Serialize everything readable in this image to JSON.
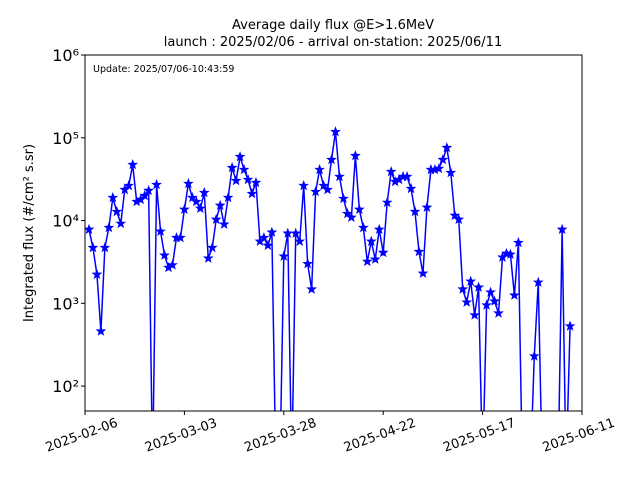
{
  "chart_data": {
    "type": "line",
    "title": "Average daily flux @E>1.6MeV",
    "subtitle": "launch : 2025/02/06 - arrival on-station: 2025/06/11",
    "annotation": "Update: 2025/07/06-10:43:59",
    "y_label": "Integrated flux (#/cm² s.sr)",
    "log_y": true,
    "xlim": [
      "2025-02-06",
      "2025-06-11"
    ],
    "xticks": [
      "2025-02-06",
      "2025-03-03",
      "2025-03-28",
      "2025-04-22",
      "2025-05-17",
      "2025-06-11"
    ],
    "ylim": [
      50,
      1000000
    ],
    "yticks": [
      {
        "value": 100,
        "label": "10²"
      },
      {
        "value": 1000,
        "label": "10³"
      },
      {
        "value": 10000,
        "label": "10⁴"
      },
      {
        "value": 100000,
        "label": "10⁵"
      },
      {
        "value": 1000000,
        "label": "10⁶"
      }
    ],
    "x": [
      "2025-02-07",
      "2025-02-08",
      "2025-02-09",
      "2025-02-10",
      "2025-02-11",
      "2025-02-12",
      "2025-02-13",
      "2025-02-14",
      "2025-02-15",
      "2025-02-16",
      "2025-02-17",
      "2025-02-18",
      "2025-02-19",
      "2025-02-20",
      "2025-02-21",
      "2025-02-22",
      "2025-02-23",
      "2025-02-24",
      "2025-02-25",
      "2025-02-26",
      "2025-02-27",
      "2025-02-28",
      "2025-03-01",
      "2025-03-02",
      "2025-03-03",
      "2025-03-04",
      "2025-03-05",
      "2025-03-06",
      "2025-03-07",
      "2025-03-08",
      "2025-03-09",
      "2025-03-10",
      "2025-03-11",
      "2025-03-12",
      "2025-03-13",
      "2025-03-14",
      "2025-03-15",
      "2025-03-16",
      "2025-03-17",
      "2025-03-18",
      "2025-03-19",
      "2025-03-20",
      "2025-03-21",
      "2025-03-22",
      "2025-03-23",
      "2025-03-24",
      "2025-03-25",
      "2025-03-26",
      "2025-03-27",
      "2025-03-28",
      "2025-03-29",
      "2025-03-30",
      "2025-03-31",
      "2025-04-01",
      "2025-04-02",
      "2025-04-03",
      "2025-04-04",
      "2025-04-05",
      "2025-04-06",
      "2025-04-07",
      "2025-04-08",
      "2025-04-09",
      "2025-04-10",
      "2025-04-11",
      "2025-04-12",
      "2025-04-13",
      "2025-04-14",
      "2025-04-15",
      "2025-04-16",
      "2025-04-17",
      "2025-04-18",
      "2025-04-19",
      "2025-04-20",
      "2025-04-21",
      "2025-04-22",
      "2025-04-23",
      "2025-04-24",
      "2025-04-25",
      "2025-04-26",
      "2025-04-27",
      "2025-04-28",
      "2025-04-29",
      "2025-04-30",
      "2025-05-01",
      "2025-05-02",
      "2025-05-03",
      "2025-05-04",
      "2025-05-05",
      "2025-05-06",
      "2025-05-07",
      "2025-05-08",
      "2025-05-09",
      "2025-05-10",
      "2025-05-11",
      "2025-05-12",
      "2025-05-13",
      "2025-05-14",
      "2025-05-15",
      "2025-05-16",
      "2025-05-17",
      "2025-05-18",
      "2025-05-19",
      "2025-05-20",
      "2025-05-21",
      "2025-05-22",
      "2025-05-23",
      "2025-05-24",
      "2025-05-25",
      "2025-05-26",
      "2025-05-27",
      "2025-05-28",
      "2025-05-29",
      "2025-05-30",
      "2025-05-31",
      "2025-06-01",
      "2025-06-02",
      "2025-06-03",
      "2025-06-04",
      "2025-06-05",
      "2025-06-06",
      "2025-06-07",
      "2025-06-08"
    ],
    "series": [
      {
        "name": "flux",
        "color": "#0000ff",
        "values": [
          7800,
          4700,
          2230,
          460,
          4700,
          8200,
          18900,
          12800,
          9200,
          23600,
          26400,
          47300,
          16900,
          17900,
          20000,
          23000,
          0,
          27100,
          7400,
          3800,
          2700,
          2900,
          6200,
          6200,
          13600,
          27900,
          18900,
          16900,
          14000,
          21700,
          3500,
          4700,
          10300,
          15200,
          9000,
          18900,
          43500,
          30300,
          59000,
          41200,
          31200,
          21100,
          28700,
          5600,
          6200,
          5000,
          7200,
          0,
          0,
          3700,
          7000,
          0,
          7000,
          5600,
          26400,
          3000,
          1480,
          22300,
          41200,
          26400,
          23600,
          54300,
          118000,
          33900,
          18400,
          12100,
          10900,
          60700,
          13600,
          8200,
          3200,
          5600,
          3400,
          7800,
          4100,
          16500,
          38900,
          29500,
          31200,
          33900,
          33900,
          24300,
          12800,
          4200,
          2300,
          14400,
          41200,
          41200,
          42400,
          54300,
          75800,
          37800,
          11500,
          10300,
          1480,
          1030,
          1840,
          720,
          1560,
          0,
          950,
          1360,
          1060,
          760,
          3600,
          4000,
          3900,
          1250,
          5400,
          0,
          0,
          0,
          230,
          1790,
          0,
          0,
          0,
          0,
          0,
          7800,
          0,
          530
        ]
      }
    ]
  }
}
